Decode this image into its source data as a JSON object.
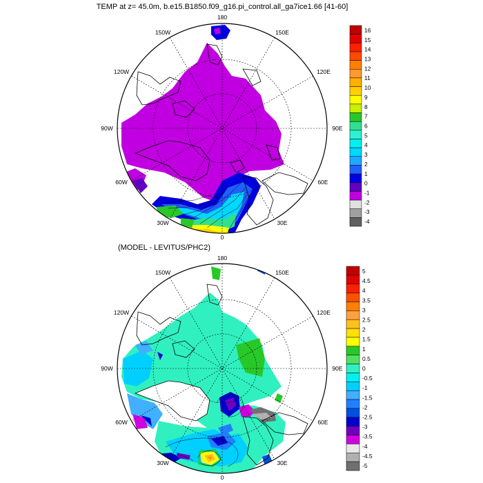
{
  "top_panel": {
    "title": "TEMP at z=  45.0m, b.e15.B1850.f09_g16.pi_control.all_ga7ice1.66 [41-60]",
    "lon_labels": {
      "top": "180",
      "top_left": "150W",
      "top_right": "150E",
      "upper_left": "120W",
      "upper_right": "120E",
      "left": "90W",
      "right": "90E",
      "lower_left": "60W",
      "lower_right": "60E",
      "bottom_left": "30W",
      "bottom_right": "30E",
      "bottom": "0"
    },
    "colorbar": {
      "labels": [
        "16",
        "15",
        "14",
        "13",
        "12",
        "11",
        "10",
        "9",
        "8",
        "7",
        "6",
        "5",
        "4",
        "3",
        "2",
        "1",
        "0",
        "-1",
        "-2",
        "-3",
        "-4"
      ],
      "colors": [
        "#c00000",
        "#e00000",
        "#ff2000",
        "#ff4a00",
        "#ff8000",
        "#ff9a30",
        "#ffb000",
        "#ffd000",
        "#ffff00",
        "#c8f000",
        "#28c828",
        "#30e090",
        "#30f0d0",
        "#00f0f0",
        "#00d8ff",
        "#20a8ff",
        "#2060ff",
        "#0000e0",
        "#6000c0",
        "#c000e0",
        "#e0e0e0",
        "#a0a0a0",
        "#606060"
      ]
    }
  },
  "bottom_panel": {
    "title": "(MODEL - LEVITUS/PHC2)",
    "lon_labels": {
      "top": "180",
      "top_left": "150W",
      "top_right": "150E",
      "upper_left": "120W",
      "upper_right": "120E",
      "left": "90W",
      "right": "90E",
      "lower_left": "60W",
      "lower_right": "60E",
      "bottom_left": "30W",
      "bottom_right": "30E",
      "bottom": "0"
    },
    "colorbar": {
      "labels": [
        "5",
        "4.5",
        "4",
        "3.5",
        "3",
        "2.5",
        "2",
        "1.5",
        "1",
        "0.5",
        "0",
        "-0.5",
        "-1",
        "-1.5",
        "-2",
        "-2.5",
        "-3",
        "-3.5",
        "-4",
        "-4.5",
        "-5"
      ],
      "colors": [
        "#c00000",
        "#e00000",
        "#ff2000",
        "#ff5000",
        "#ff8000",
        "#ffa040",
        "#ffc020",
        "#ffe000",
        "#ffff00",
        "#28c828",
        "#50e060",
        "#30f0c0",
        "#00f0f0",
        "#00d0ff",
        "#40b0ff",
        "#2080ff",
        "#0050e0",
        "#0000d0",
        "#7000c0",
        "#d000e0",
        "#e8e8e8",
        "#b0b0b0",
        "#707070"
      ]
    }
  }
}
